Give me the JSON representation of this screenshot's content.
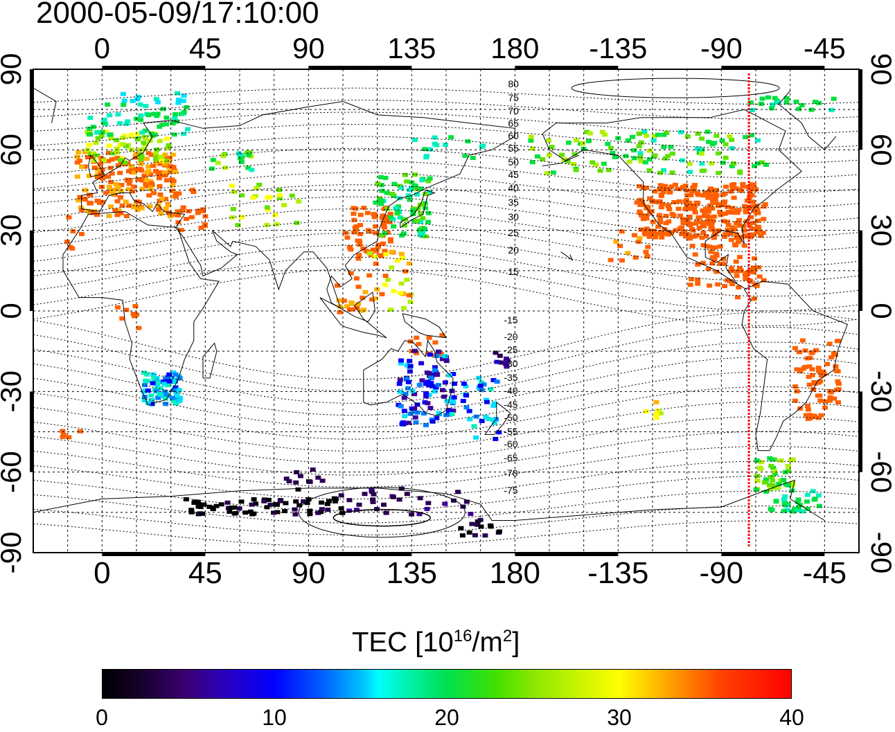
{
  "title": "2000-05-09/17:10:00",
  "map": {
    "top_lon_ticks": [
      "0",
      "45",
      "90",
      "135",
      "180",
      "-135",
      "-90",
      "-45"
    ],
    "bottom_lon_ticks": [
      "0",
      "45",
      "90",
      "135",
      "180",
      "-135",
      "-90",
      "-45"
    ],
    "left_lat_ticks": [
      "90",
      "60",
      "30",
      "0",
      "-30",
      "-60",
      "-90"
    ],
    "right_lat_ticks": [
      "90",
      "60",
      "30",
      "0",
      "-30",
      "-60",
      "-90"
    ],
    "contour_labels_north": [
      "80",
      "75",
      "70",
      "65",
      "60",
      "55",
      "50",
      "45",
      "40",
      "35",
      "30",
      "25",
      "20",
      "15"
    ],
    "contour_labels_south": [
      "-15",
      "-20",
      "-25",
      "-30",
      "-35",
      "-40",
      "-45",
      "-50",
      "-55",
      "-60",
      "-65",
      "-70",
      "-75"
    ],
    "marker_line_lon": -78,
    "marker_color": "#ff0000"
  },
  "colorbar": {
    "title_prefix": "TEC  [10",
    "title_sup1": "16",
    "title_mid": "/m",
    "title_sup2": "2",
    "title_suffix": "]",
    "ticks": [
      "0",
      "10",
      "20",
      "30",
      "40"
    ],
    "min": 0,
    "max": 40
  }
}
